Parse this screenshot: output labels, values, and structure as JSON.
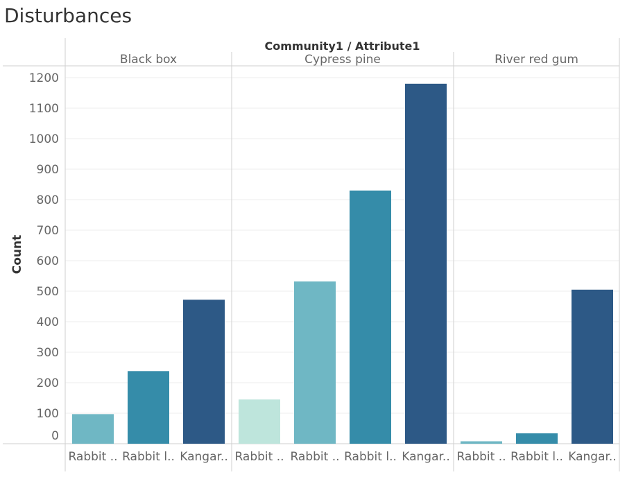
{
  "title": "Disturbances",
  "chart_data": {
    "type": "bar",
    "title": "Disturbances",
    "column_header": "Community1 / Attribute1",
    "ylabel": "Count",
    "ylim": [
      0,
      1200
    ],
    "yticks": [
      "1200",
      "1100",
      "1000",
      "900",
      "800",
      "700",
      "600",
      "500",
      "400",
      "300",
      "200",
      "100",
      "0"
    ],
    "grid": true,
    "panels": [
      {
        "name": "Black box",
        "bars": [
          {
            "label": "Rabbit ..",
            "value": 97,
            "color": "#6fb7c4"
          },
          {
            "label": "Rabbit l..",
            "value": 238,
            "color": "#358ca9"
          },
          {
            "label": "Kangar..",
            "value": 472,
            "color": "#2d5986"
          }
        ]
      },
      {
        "name": "Cypress pine",
        "bars": [
          {
            "label": "Rabbit ..",
            "value": 145,
            "color": "#bee5dc"
          },
          {
            "label": "Rabbit ..",
            "value": 532,
            "color": "#6fb7c4"
          },
          {
            "label": "Rabbit l..",
            "value": 830,
            "color": "#358ca9"
          },
          {
            "label": "Kangar..",
            "value": 1180,
            "color": "#2d5986"
          }
        ]
      },
      {
        "name": "River red gum",
        "bars": [
          {
            "label": "Rabbit ..",
            "value": 8,
            "color": "#6fb7c4"
          },
          {
            "label": "Rabbit l..",
            "value": 34,
            "color": "#358ca9"
          },
          {
            "label": "Kangar..",
            "value": 505,
            "color": "#2d5986"
          }
        ]
      }
    ]
  }
}
